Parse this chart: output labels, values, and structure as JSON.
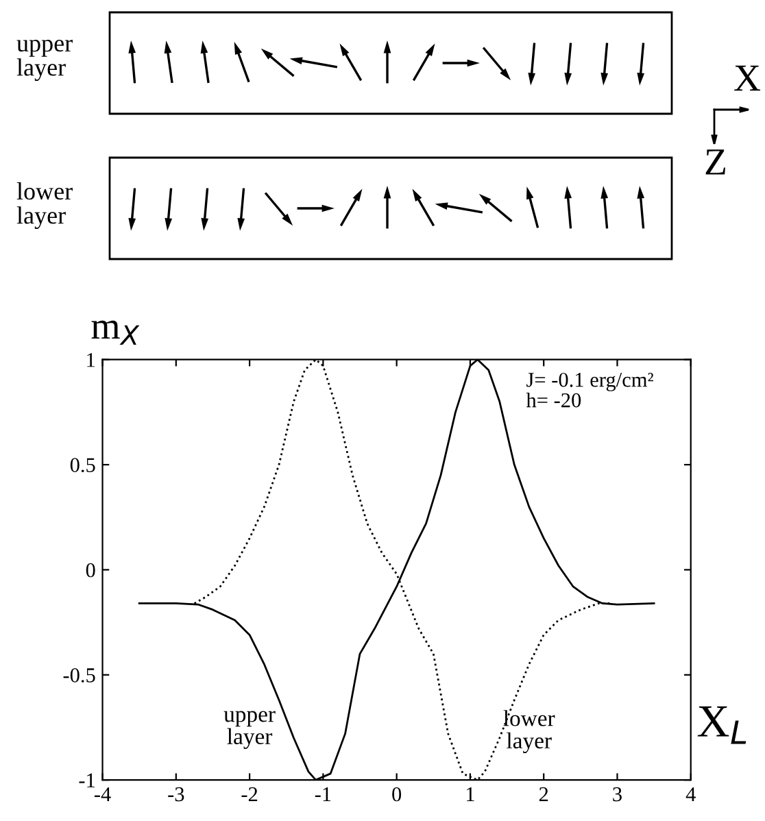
{
  "chart_data": {
    "type": "line",
    "xlabel": "X$_{L}$",
    "ylabel": "m$_{X}$",
    "annotations": [
      "upper layer",
      "lower layer",
      "X",
      "Z",
      "J= -0.1 erg/cm²\nh= -20"
    ],
    "series": [
      {
        "name": "upper layer",
        "color": "#000000",
        "line_style": "solid",
        "x": [
          -3.5,
          -3.0,
          -2.7,
          -2.5,
          -2.2,
          -2.0,
          -1.8,
          -1.6,
          -1.4,
          -1.2,
          -1.1,
          -0.9,
          -0.7,
          -0.5,
          -0.3,
          0.0,
          0.2,
          0.4,
          0.6,
          0.8,
          1.0,
          1.1,
          1.25,
          1.4,
          1.6,
          1.8,
          2.0,
          2.2,
          2.4,
          2.6,
          2.8,
          3.0,
          3.5
        ],
        "values": [
          -0.16,
          -0.16,
          -0.165,
          -0.19,
          -0.24,
          -0.31,
          -0.45,
          -0.62,
          -0.8,
          -0.96,
          -1.0,
          -0.97,
          -0.78,
          -0.4,
          -0.28,
          -0.08,
          0.08,
          0.22,
          0.45,
          0.75,
          0.97,
          1.0,
          0.95,
          0.8,
          0.5,
          0.3,
          0.15,
          0.02,
          -0.08,
          -0.13,
          -0.16,
          -0.165,
          -0.16
        ]
      },
      {
        "name": "lower layer",
        "color": "#000000",
        "line_style": "dotted",
        "x": [
          -2.75,
          -2.6,
          -2.4,
          -2.2,
          -2.0,
          -1.8,
          -1.6,
          -1.4,
          -1.25,
          -1.1,
          -1.0,
          -0.8,
          -0.6,
          -0.4,
          -0.2,
          0.0,
          0.3,
          0.5,
          0.7,
          0.9,
          1.1,
          1.2,
          1.4,
          1.6,
          1.8,
          2.0,
          2.2,
          2.5,
          2.75,
          2.9
        ],
        "values": [
          -0.16,
          -0.13,
          -0.08,
          0.02,
          0.15,
          0.3,
          0.5,
          0.8,
          0.95,
          1.0,
          0.97,
          0.75,
          0.45,
          0.22,
          0.08,
          -0.02,
          -0.28,
          -0.4,
          -0.78,
          -0.97,
          -1.0,
          -0.96,
          -0.8,
          -0.62,
          -0.45,
          -0.31,
          -0.24,
          -0.19,
          -0.16,
          -0.16
        ]
      }
    ],
    "xlim": [
      -4,
      4
    ],
    "ylim": [
      -1,
      1
    ],
    "xticks": [
      -4,
      -3,
      -2,
      -1,
      0,
      1,
      2,
      3,
      4
    ],
    "yticks": [
      -1,
      -0.5,
      0,
      0.5,
      1
    ],
    "grid": false,
    "legend": false
  }
}
